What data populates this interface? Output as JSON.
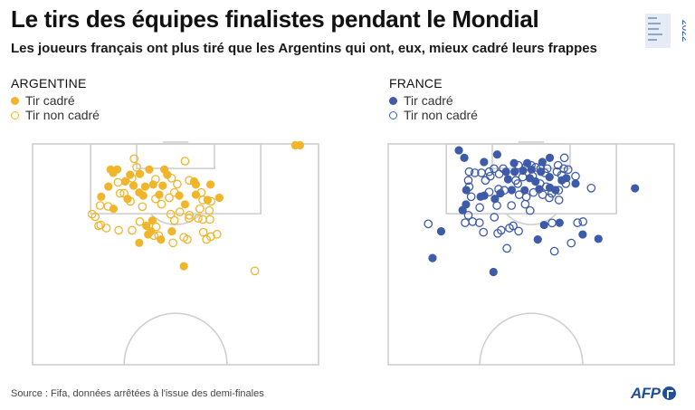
{
  "header": {
    "title": "Le tirs des équipes finalistes pendant le Mondial",
    "subtitle": "Les joueurs français ont plus tiré que les Argentins qui ont, eux, mieux cadré leurs frappes"
  },
  "logo": {
    "year": "2022"
  },
  "colors": {
    "argentine": "#f1b52b",
    "france": "#3d5ba9",
    "pitch_lines": "#cfcfcf"
  },
  "chart_data": [
    {
      "type": "scatter",
      "team": "ARGENTINE",
      "legend": [
        "Tir cadré",
        "Tir non cadré"
      ],
      "xlim": [
        0,
        1
      ],
      "ylim": [
        0,
        1
      ],
      "series": [
        {
          "name": "Tir cadré",
          "points": [
            [
              0.273,
              0.116
            ],
            [
              0.296,
              0.116
            ],
            [
              0.408,
              0.116
            ],
            [
              0.461,
              0.116
            ],
            [
              0.282,
              0.131
            ],
            [
              0.375,
              0.136
            ],
            [
              0.341,
              0.14
            ],
            [
              0.471,
              0.14
            ],
            [
              0.324,
              0.17
            ],
            [
              0.565,
              0.17
            ],
            [
              0.353,
              0.189
            ],
            [
              0.265,
              0.193
            ],
            [
              0.394,
              0.193
            ],
            [
              0.422,
              0.184
            ],
            [
              0.455,
              0.189
            ],
            [
              0.571,
              0.184
            ],
            [
              0.622,
              0.184
            ],
            [
              0.373,
              0.22
            ],
            [
              0.443,
              0.23
            ],
            [
              0.571,
              0.23
            ],
            [
              0.513,
              0.234
            ],
            [
              0.24,
              0.239
            ],
            [
              0.387,
              0.234
            ],
            [
              0.332,
              0.249
            ],
            [
              0.653,
              0.244
            ],
            [
              0.612,
              0.254
            ],
            [
              0.533,
              0.274
            ],
            [
              0.283,
              0.294
            ],
            [
              0.419,
              0.347
            ],
            [
              0.398,
              0.371
            ],
            [
              0.414,
              0.396
            ],
            [
              0.487,
              0.396
            ],
            [
              0.373,
              0.448
            ],
            [
              0.449,
              0.433
            ],
            [
              0.529,
              0.554
            ],
            [
              0.404,
              0.41
            ],
            [
              0.919,
              0.006
            ],
            [
              0.935,
              0.006
            ]
          ]
        },
        {
          "name": "Tir non cadré",
          "points": [
            [
              0.355,
              0.067
            ],
            [
              0.533,
              0.078
            ],
            [
              0.364,
              0.106
            ],
            [
              0.348,
              0.155
            ],
            [
              0.299,
              0.174
            ],
            [
              0.43,
              0.16
            ],
            [
              0.486,
              0.155
            ],
            [
              0.506,
              0.182
            ],
            [
              0.548,
              0.165
            ],
            [
              0.32,
              0.224
            ],
            [
              0.306,
              0.224
            ],
            [
              0.342,
              0.26
            ],
            [
              0.43,
              0.249
            ],
            [
              0.478,
              0.244
            ],
            [
              0.496,
              0.22
            ],
            [
              0.59,
              0.22
            ],
            [
              0.595,
              0.254
            ],
            [
              0.624,
              0.26
            ],
            [
              0.236,
              0.279
            ],
            [
              0.264,
              0.283
            ],
            [
              0.384,
              0.284
            ],
            [
              0.451,
              0.273
            ],
            [
              0.585,
              0.294
            ],
            [
              0.618,
              0.302
            ],
            [
              0.208,
              0.318
            ],
            [
              0.219,
              0.33
            ],
            [
              0.483,
              0.318
            ],
            [
              0.515,
              0.308
            ],
            [
              0.548,
              0.323
            ],
            [
              0.238,
              0.367
            ],
            [
              0.375,
              0.352
            ],
            [
              0.547,
              0.337
            ],
            [
              0.579,
              0.337
            ],
            [
              0.231,
              0.371
            ],
            [
              0.496,
              0.347
            ],
            [
              0.595,
              0.342
            ],
            [
              0.62,
              0.342
            ],
            [
              0.258,
              0.381
            ],
            [
              0.301,
              0.391
            ],
            [
              0.348,
              0.391
            ],
            [
              0.432,
              0.376
            ],
            [
              0.597,
              0.4
            ],
            [
              0.608,
              0.433
            ],
            [
              0.623,
              0.42
            ],
            [
              0.645,
              0.409
            ],
            [
              0.529,
              0.423
            ],
            [
              0.541,
              0.433
            ],
            [
              0.424,
              0.415
            ],
            [
              0.441,
              0.415
            ],
            [
              0.491,
              0.448
            ],
            [
              0.777,
              0.575
            ]
          ]
        }
      ]
    },
    {
      "type": "scatter",
      "team": "FRANCE",
      "legend": [
        "Tir cadré",
        "Tir non cadré"
      ],
      "xlim": [
        0,
        1
      ],
      "ylim": [
        0,
        1
      ],
      "series": [
        {
          "name": "Tir cadré",
          "points": [
            [
              0.247,
              0.029
            ],
            [
              0.266,
              0.063
            ],
            [
              0.381,
              0.048
            ],
            [
              0.335,
              0.082
            ],
            [
              0.44,
              0.087
            ],
            [
              0.486,
              0.087
            ],
            [
              0.539,
              0.082
            ],
            [
              0.565,
              0.063
            ],
            [
              0.412,
              0.126
            ],
            [
              0.442,
              0.126
            ],
            [
              0.471,
              0.121
            ],
            [
              0.501,
              0.116
            ],
            [
              0.534,
              0.126
            ],
            [
              0.419,
              0.16
            ],
            [
              0.495,
              0.155
            ],
            [
              0.564,
              0.15
            ],
            [
              0.623,
              0.155
            ],
            [
              0.273,
              0.209
            ],
            [
              0.323,
              0.239
            ],
            [
              0.392,
              0.224
            ],
            [
              0.432,
              0.209
            ],
            [
              0.515,
              0.17
            ],
            [
              0.565,
              0.198
            ],
            [
              0.607,
              0.165
            ],
            [
              0.655,
              0.18
            ],
            [
              0.272,
              0.274
            ],
            [
              0.336,
              0.234
            ],
            [
              0.477,
              0.21
            ],
            [
              0.528,
              0.205
            ],
            [
              0.585,
              0.209
            ],
            [
              0.26,
              0.3
            ],
            [
              0.373,
              0.249
            ],
            [
              0.545,
              0.367
            ],
            [
              0.599,
              0.357
            ],
            [
              0.68,
              0.41
            ],
            [
              0.735,
              0.43
            ],
            [
              0.185,
              0.396
            ],
            [
              0.523,
              0.433
            ],
            [
              0.155,
              0.517
            ],
            [
              0.368,
              0.58
            ],
            [
              0.863,
              0.201
            ]
          ]
        },
        {
          "name": "Tir non cadré",
          "points": [
            [
              0.283,
              0.126
            ],
            [
              0.303,
              0.131
            ],
            [
              0.326,
              0.131
            ],
            [
              0.353,
              0.126
            ],
            [
              0.37,
              0.112
            ],
            [
              0.402,
              0.112
            ],
            [
              0.455,
              0.097
            ],
            [
              0.483,
              0.102
            ],
            [
              0.5,
              0.097
            ],
            [
              0.516,
              0.106
            ],
            [
              0.533,
              0.112
            ],
            [
              0.556,
              0.112
            ],
            [
              0.594,
              0.097
            ],
            [
              0.614,
              0.112
            ],
            [
              0.629,
              0.116
            ],
            [
              0.616,
              0.063
            ],
            [
              0.28,
              0.165
            ],
            [
              0.34,
              0.165
            ],
            [
              0.357,
              0.146
            ],
            [
              0.388,
              0.136
            ],
            [
              0.446,
              0.165
            ],
            [
              0.47,
              0.15
            ],
            [
              0.505,
              0.146
            ],
            [
              0.547,
              0.131
            ],
            [
              0.59,
              0.126
            ],
            [
              0.606,
              0.141
            ],
            [
              0.621,
              0.18
            ],
            [
              0.655,
              0.146
            ],
            [
              0.283,
              0.194
            ],
            [
              0.386,
              0.205
            ],
            [
              0.453,
              0.18
            ],
            [
              0.531,
              0.18
            ],
            [
              0.553,
              0.194
            ],
            [
              0.572,
              0.224
            ],
            [
              0.596,
              0.21
            ],
            [
              0.71,
              0.2
            ],
            [
              0.29,
              0.239
            ],
            [
              0.353,
              0.218
            ],
            [
              0.406,
              0.21
            ],
            [
              0.458,
              0.23
            ],
            [
              0.483,
              0.24
            ],
            [
              0.508,
              0.22
            ],
            [
              0.54,
              0.23
            ],
            [
              0.563,
              0.244
            ],
            [
              0.597,
              0.254
            ],
            [
              0.32,
              0.288
            ],
            [
              0.38,
              0.279
            ],
            [
              0.431,
              0.279
            ],
            [
              0.479,
              0.273
            ],
            [
              0.496,
              0.302
            ],
            [
              0.14,
              0.362
            ],
            [
              0.28,
              0.323
            ],
            [
              0.371,
              0.332
            ],
            [
              0.424,
              0.381
            ],
            [
              0.437,
              0.371
            ],
            [
              0.456,
              0.395
            ],
            [
              0.573,
              0.358
            ],
            [
              0.662,
              0.357
            ],
            [
              0.681,
              0.352
            ],
            [
              0.269,
              0.357
            ],
            [
              0.295,
              0.352
            ],
            [
              0.319,
              0.357
            ],
            [
              0.333,
              0.4
            ],
            [
              0.383,
              0.405
            ],
            [
              0.395,
              0.391
            ],
            [
              0.64,
              0.449
            ],
            [
              0.581,
              0.486
            ],
            [
              0.415,
              0.473
            ]
          ]
        }
      ]
    }
  ],
  "source": "Source : Fifa, données arrêtées à l'issue des demi-finales",
  "brand": "AFP"
}
